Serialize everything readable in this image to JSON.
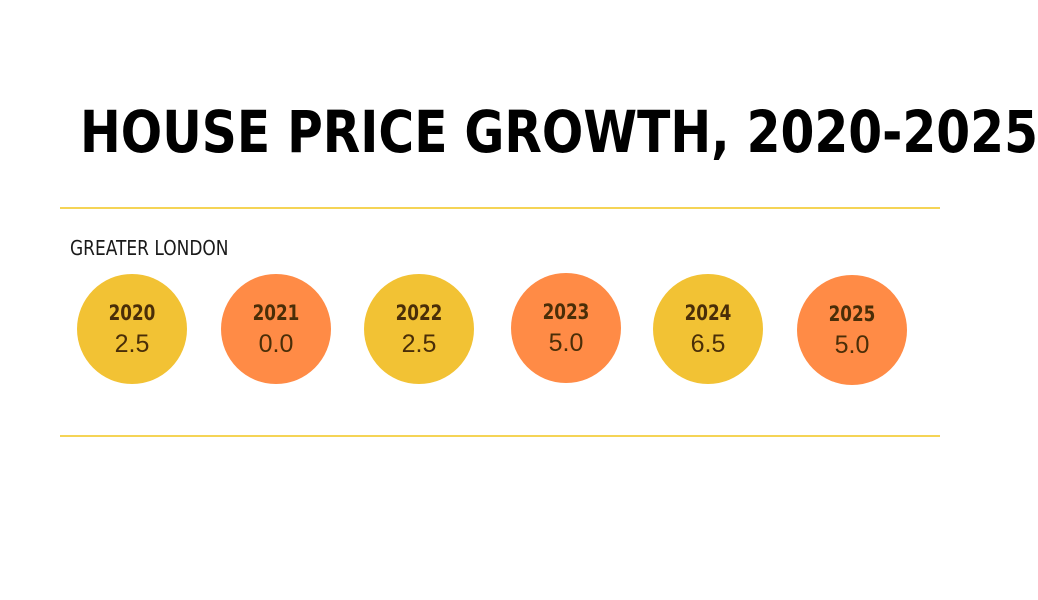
{
  "chart_data": {
    "type": "table",
    "title": "HOUSE PRICE GROWTH, 2020-2025",
    "region": "GREATER LONDON",
    "categories": [
      "2020",
      "2021",
      "2022",
      "2023",
      "2024",
      "2025"
    ],
    "values": [
      2.5,
      0.0,
      2.5,
      5.0,
      6.5,
      5.0
    ],
    "value_labels": [
      "2.5",
      "0.0",
      "2.5",
      "5.0",
      "6.5",
      "5.0"
    ],
    "colors": [
      "#f2c234",
      "#ff8b46",
      "#f2c234",
      "#ff8b46",
      "#f2c234",
      "#ff8b46"
    ]
  },
  "colors": {
    "rule": "#f5d456"
  }
}
